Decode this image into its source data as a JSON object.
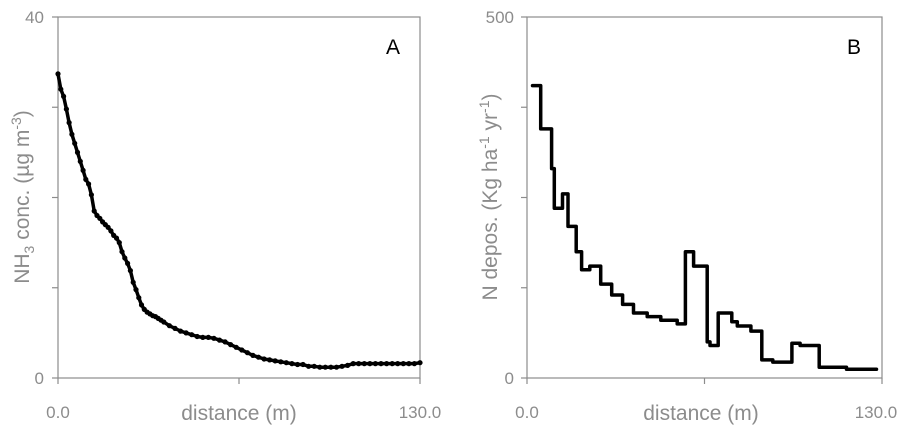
{
  "chart_data": [
    {
      "type": "line",
      "panel_label": "A",
      "xlabel": "distance (m)",
      "ylabel_main": "NH",
      "ylabel_sub": "3",
      "ylabel_rest": " conc.  (µg m",
      "ylabel_sup": "-3",
      "ylabel_end": ")",
      "xlim": [
        0,
        130
      ],
      "ylim": [
        0,
        40
      ],
      "x_tick_labels": [
        "0.0",
        "130.0"
      ],
      "y_tick_labels": [
        "0",
        "40"
      ],
      "y_ticks": [
        0,
        10,
        20,
        30,
        40
      ],
      "x_ticks": [
        0,
        65,
        130
      ],
      "markers": true,
      "line_color": "#000000",
      "x": [
        0,
        1,
        2,
        3,
        4,
        5,
        6,
        7,
        8,
        9,
        10,
        11,
        12,
        13,
        14,
        15,
        16,
        17,
        18,
        19,
        20,
        21,
        22,
        23,
        24,
        25,
        26,
        27,
        28,
        29,
        30,
        31,
        32,
        33,
        34,
        35,
        36,
        37,
        38,
        40,
        42,
        44,
        46,
        48,
        50,
        52,
        54,
        56,
        58,
        60,
        62,
        64,
        66,
        68,
        70,
        72,
        74,
        76,
        78,
        80,
        82,
        84,
        86,
        88,
        90,
        92,
        94,
        96,
        98,
        100,
        102,
        104,
        106,
        108,
        110,
        112,
        114,
        116,
        118,
        120,
        122,
        124,
        126,
        128,
        130
      ],
      "y": [
        33.7,
        32.0,
        31.2,
        29.8,
        28.3,
        27.0,
        26.0,
        25.0,
        24.0,
        23.0,
        22.0,
        21.5,
        20.3,
        18.5,
        18.0,
        17.7,
        17.3,
        17.0,
        16.7,
        16.3,
        15.8,
        15.5,
        15.0,
        14.0,
        13.3,
        12.7,
        11.9,
        10.6,
        9.8,
        8.9,
        8.1,
        7.6,
        7.3,
        7.1,
        6.9,
        6.8,
        6.6,
        6.4,
        6.2,
        5.8,
        5.5,
        5.2,
        5.0,
        4.8,
        4.6,
        4.5,
        4.5,
        4.4,
        4.2,
        4.0,
        3.7,
        3.4,
        3.1,
        2.8,
        2.5,
        2.3,
        2.1,
        2.0,
        1.9,
        1.8,
        1.7,
        1.6,
        1.5,
        1.5,
        1.3,
        1.3,
        1.2,
        1.2,
        1.2,
        1.2,
        1.3,
        1.4,
        1.6,
        1.6,
        1.6,
        1.6,
        1.6,
        1.6,
        1.6,
        1.6,
        1.6,
        1.6,
        1.6,
        1.6,
        1.7
      ]
    },
    {
      "type": "line",
      "panel_label": "B",
      "xlabel": "distance (m)",
      "ylabel_main": "N depos. (Kg ha",
      "ylabel_sup": "-1",
      "ylabel_mid": " yr",
      "ylabel_sup2": "-1",
      "ylabel_end": ")",
      "xlim": [
        0,
        130
      ],
      "ylim": [
        0,
        500
      ],
      "x_tick_labels": [
        "0.0",
        "130.0"
      ],
      "y_tick_labels": [
        "0",
        "500"
      ],
      "y_ticks": [
        0,
        125,
        250,
        375,
        500
      ],
      "x_ticks": [
        0,
        65,
        130
      ],
      "markers": false,
      "line_color": "#000000",
      "x": [
        2,
        5,
        5,
        9,
        9,
        10,
        10,
        13,
        13,
        14,
        14,
        15,
        15,
        18,
        18,
        20,
        20,
        23,
        23,
        27,
        27,
        31,
        31,
        35,
        35,
        39,
        39,
        44,
        44,
        49,
        49,
        53,
        53,
        55,
        55,
        58,
        58,
        61,
        61,
        66,
        66,
        66,
        66,
        67,
        67,
        70,
        70,
        75,
        75,
        77,
        77,
        82,
        82,
        86,
        86,
        90,
        90,
        96,
        96,
        97,
        97,
        100,
        100,
        106,
        106,
        107,
        107,
        110,
        110,
        117,
        117,
        119,
        119,
        128
      ],
      "y": [
        405,
        405,
        345,
        345,
        290,
        290,
        235,
        235,
        255,
        255,
        255,
        255,
        210,
        210,
        175,
        175,
        150,
        150,
        155,
        155,
        130,
        130,
        115,
        115,
        102,
        102,
        90,
        90,
        85,
        85,
        80,
        80,
        80,
        80,
        75,
        75,
        175,
        175,
        155,
        155,
        125,
        125,
        50,
        50,
        45,
        45,
        90,
        90,
        78,
        78,
        72,
        72,
        65,
        65,
        25,
        25,
        22,
        22,
        22,
        22,
        48,
        48,
        45,
        45,
        45,
        45,
        15,
        15,
        15,
        15,
        12,
        12,
        12,
        12
      ]
    }
  ]
}
